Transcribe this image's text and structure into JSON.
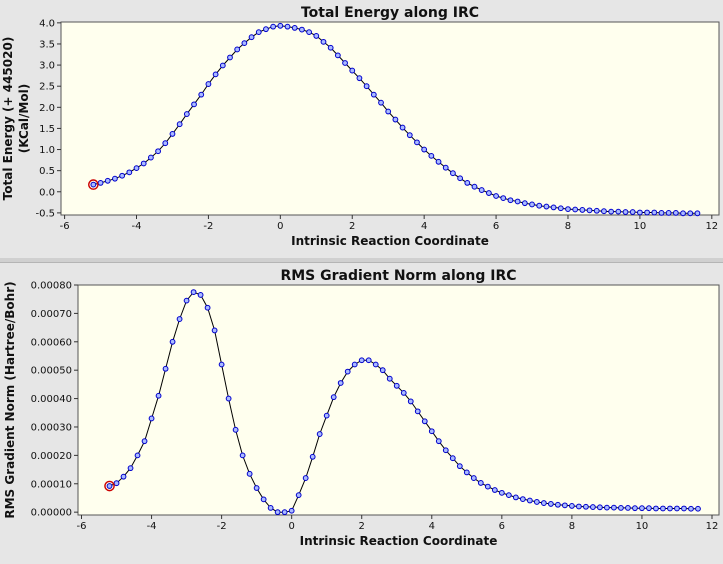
{
  "chart_data": [
    {
      "type": "line",
      "title": "Total Energy along IRC",
      "xlabel": "Intrinsic Reaction Coordinate",
      "ylabel_line1": "Total Energy (+ 445020)",
      "ylabel_line2": "(KCal/Mol)",
      "xlim": [
        -6.1,
        12.2
      ],
      "ylim": [
        -0.55,
        4.02
      ],
      "x_ticks": [
        -6,
        -4,
        -2,
        0,
        2,
        4,
        6,
        8,
        10,
        12
      ],
      "x_tick_labels": [
        "-6",
        "-4",
        "-2",
        "0",
        "2",
        "4",
        "6",
        "8",
        "10",
        "12"
      ],
      "y_ticks": [
        -0.5,
        0.0,
        0.5,
        1.0,
        1.5,
        2.0,
        2.5,
        3.0,
        3.5,
        4.0
      ],
      "y_tick_labels": [
        "-0.5",
        "0.0",
        "0.5",
        "1.0",
        "1.5",
        "2.0",
        "2.5",
        "3.0",
        "3.5",
        "4.0"
      ],
      "grid": false,
      "highlight_point": {
        "x": -5.2,
        "y": 0.17
      },
      "colors": {
        "line": "#000000",
        "marker_fill": "#aabbff",
        "marker_stroke": "#0000cc",
        "highlight": "#cc0000",
        "plot_bg": "#ffffee"
      },
      "series": [
        {
          "x": [
            -5.2,
            -5.0,
            -4.8,
            -4.6,
            -4.4,
            -4.2,
            -4.0,
            -3.8,
            -3.6,
            -3.4,
            -3.2,
            -3.0,
            -2.8,
            -2.6,
            -2.4,
            -2.2,
            -2.0,
            -1.8,
            -1.6,
            -1.4,
            -1.2,
            -1.0,
            -0.8,
            -0.6,
            -0.4,
            -0.2,
            0.0,
            0.2,
            0.4,
            0.6,
            0.8,
            1.0,
            1.2,
            1.4,
            1.6,
            1.8,
            2.0,
            2.2,
            2.4,
            2.6,
            2.8,
            3.0,
            3.2,
            3.4,
            3.6,
            3.8,
            4.0,
            4.2,
            4.4,
            4.6,
            4.8,
            5.0,
            5.2,
            5.4,
            5.6,
            5.8,
            6.0,
            6.2,
            6.4,
            6.6,
            6.8,
            7.0,
            7.2,
            7.4,
            7.6,
            7.8,
            8.0,
            8.2,
            8.4,
            8.6,
            8.8,
            9.0,
            9.2,
            9.4,
            9.6,
            9.8,
            10.0,
            10.2,
            10.4,
            10.6,
            10.8,
            11.0,
            11.2,
            11.4,
            11.6
          ],
          "y": [
            0.17,
            0.21,
            0.26,
            0.31,
            0.38,
            0.46,
            0.56,
            0.67,
            0.81,
            0.96,
            1.15,
            1.37,
            1.6,
            1.84,
            2.07,
            2.3,
            2.55,
            2.78,
            2.99,
            3.18,
            3.37,
            3.52,
            3.66,
            3.78,
            3.85,
            3.91,
            3.93,
            3.91,
            3.88,
            3.84,
            3.78,
            3.69,
            3.55,
            3.41,
            3.23,
            3.05,
            2.87,
            2.69,
            2.5,
            2.3,
            2.11,
            1.9,
            1.71,
            1.52,
            1.34,
            1.17,
            1.0,
            0.85,
            0.71,
            0.57,
            0.44,
            0.32,
            0.21,
            0.12,
            0.04,
            -0.03,
            -0.1,
            -0.15,
            -0.2,
            -0.23,
            -0.27,
            -0.3,
            -0.33,
            -0.35,
            -0.37,
            -0.39,
            -0.41,
            -0.42,
            -0.43,
            -0.44,
            -0.45,
            -0.46,
            -0.47,
            -0.47,
            -0.48,
            -0.48,
            -0.49,
            -0.49,
            -0.49,
            -0.5,
            -0.5,
            -0.5,
            -0.51,
            -0.51,
            -0.51
          ]
        }
      ]
    },
    {
      "type": "line",
      "title": "RMS Gradient Norm along IRC",
      "xlabel": "Intrinsic Reaction Coordinate",
      "ylabel_line1": "RMS Gradient Norm (Hartree/Bohr)",
      "ylabel_line2": "",
      "xlim": [
        -6.1,
        12.2
      ],
      "ylim": [
        -1e-05,
        0.0008
      ],
      "x_ticks": [
        -6,
        -4,
        -2,
        0,
        2,
        4,
        6,
        8,
        10,
        12
      ],
      "x_tick_labels": [
        "-6",
        "-4",
        "-2",
        "0",
        "2",
        "4",
        "6",
        "8",
        "10",
        "12"
      ],
      "y_ticks": [
        0,
        0.0001,
        0.0002,
        0.0003,
        0.0004,
        0.0005,
        0.0006,
        0.0007,
        0.0008
      ],
      "y_tick_labels": [
        "0.00000",
        "0.00010",
        "0.00020",
        "0.00030",
        "0.00040",
        "0.00050",
        "0.00060",
        "0.00070",
        "0.00080"
      ],
      "grid": false,
      "highlight_point": {
        "x": -5.2,
        "y": 9.2e-05
      },
      "colors": {
        "line": "#000000",
        "marker_fill": "#aabbff",
        "marker_stroke": "#0000cc",
        "highlight": "#cc0000",
        "plot_bg": "#ffffee"
      },
      "series": [
        {
          "x": [
            -5.2,
            -5.0,
            -4.8,
            -4.6,
            -4.4,
            -4.2,
            -4.0,
            -3.8,
            -3.6,
            -3.4,
            -3.2,
            -3.0,
            -2.8,
            -2.6,
            -2.4,
            -2.2,
            -2.0,
            -1.8,
            -1.6,
            -1.4,
            -1.2,
            -1.0,
            -0.8,
            -0.6,
            -0.4,
            -0.2,
            0.0,
            0.2,
            0.4,
            0.6,
            0.8,
            1.0,
            1.2,
            1.4,
            1.6,
            1.8,
            2.0,
            2.2,
            2.4,
            2.6,
            2.8,
            3.0,
            3.2,
            3.4,
            3.6,
            3.8,
            4.0,
            4.2,
            4.4,
            4.6,
            4.8,
            5.0,
            5.2,
            5.4,
            5.6,
            5.8,
            6.0,
            6.2,
            6.4,
            6.6,
            6.8,
            7.0,
            7.2,
            7.4,
            7.6,
            7.8,
            8.0,
            8.2,
            8.4,
            8.6,
            8.8,
            9.0,
            9.2,
            9.4,
            9.6,
            9.8,
            10.0,
            10.2,
            10.4,
            10.6,
            10.8,
            11.0,
            11.2,
            11.4,
            11.6
          ],
          "y": [
            9.2e-05,
            0.000102,
            0.000125,
            0.000155,
            0.0002,
            0.00025,
            0.00033,
            0.00041,
            0.000505,
            0.0006,
            0.00068,
            0.000745,
            0.000775,
            0.000765,
            0.00072,
            0.00064,
            0.00052,
            0.0004,
            0.00029,
            0.0002,
            0.000135,
            8.5e-05,
            4.5e-05,
            1.5e-05,
            0.0,
            0.0,
            5e-06,
            6e-05,
            0.00012,
            0.000195,
            0.000275,
            0.00034,
            0.000405,
            0.000455,
            0.000495,
            0.00052,
            0.000535,
            0.000535,
            0.00052,
            0.0005,
            0.00047,
            0.000445,
            0.00042,
            0.00039,
            0.000355,
            0.00032,
            0.000285,
            0.00025,
            0.000218,
            0.00019,
            0.000162,
            0.00014,
            0.00012,
            0.000103,
            9e-05,
            7.8e-05,
            6.8e-05,
            6e-05,
            5.2e-05,
            4.6e-05,
            4.1e-05,
            3.6e-05,
            3.2e-05,
            2.9e-05,
            2.6e-05,
            2.4e-05,
            2.2e-05,
            2e-05,
            1.9e-05,
            1.8e-05,
            1.7e-05,
            1.6e-05,
            1.6e-05,
            1.5e-05,
            1.5e-05,
            1.4e-05,
            1.4e-05,
            1.4e-05,
            1.3e-05,
            1.3e-05,
            1.3e-05,
            1.3e-05,
            1.3e-05,
            1.2e-05,
            1.2e-05
          ]
        }
      ]
    }
  ]
}
